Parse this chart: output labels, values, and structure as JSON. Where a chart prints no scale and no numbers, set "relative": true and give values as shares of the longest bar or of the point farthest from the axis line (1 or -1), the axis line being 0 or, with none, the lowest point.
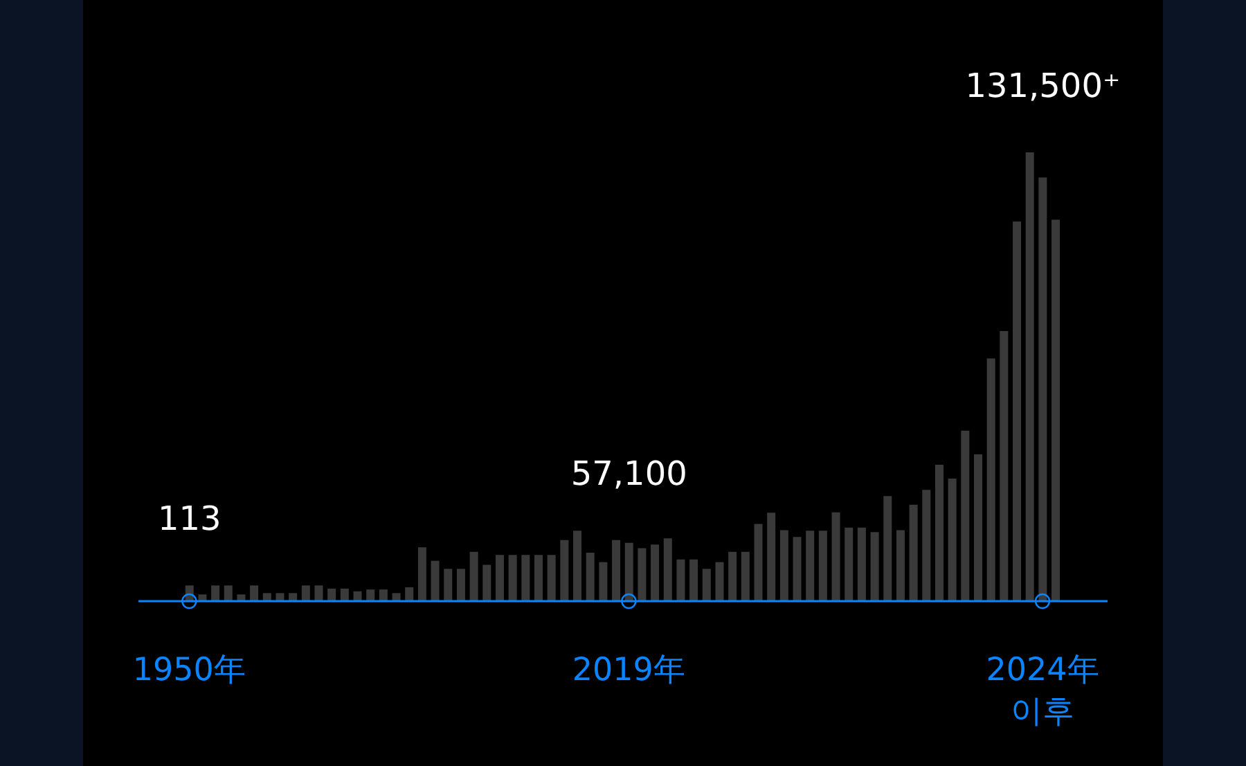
{
  "chart_data": {
    "type": "bar",
    "relative": true,
    "color": "#3a3a3a",
    "tick_labels": "x",
    "annotations": [
      "113",
      "57,100",
      "131,500⁺"
    ],
    "categories": [
      "1950年",
      null,
      null,
      null,
      null,
      null,
      null,
      null,
      null,
      null,
      null,
      null,
      null,
      null,
      null,
      null,
      null,
      null,
      null,
      null,
      null,
      null,
      null,
      null,
      null,
      null,
      null,
      null,
      null,
      null,
      null,
      null,
      null,
      null,
      "2019年",
      null,
      null,
      null,
      null,
      null,
      null,
      null,
      null,
      null,
      null,
      null,
      null,
      null,
      null,
      null,
      null,
      null,
      null,
      null,
      null,
      null,
      null,
      null,
      null,
      null,
      null,
      null,
      null,
      null,
      null,
      null,
      "2024年\n이후",
      null
    ],
    "values": [
      0.035,
      0.015,
      0.035,
      0.035,
      0.015,
      0.035,
      0.018,
      0.018,
      0.018,
      0.035,
      0.035,
      0.028,
      0.028,
      0.022,
      0.026,
      0.026,
      0.018,
      0.031,
      0.12,
      0.09,
      0.072,
      0.072,
      0.11,
      0.081,
      0.103,
      0.103,
      0.103,
      0.103,
      0.103,
      0.136,
      0.157,
      0.108,
      0.087,
      0.136,
      0.13,
      0.118,
      0.126,
      0.14,
      0.093,
      0.093,
      0.072,
      0.087,
      0.11,
      0.11,
      0.172,
      0.197,
      0.158,
      0.143,
      0.157,
      0.157,
      0.198,
      0.164,
      0.164,
      0.154,
      0.234,
      0.158,
      0.215,
      0.248,
      0.304,
      0.273,
      0.38,
      0.327,
      0.541,
      0.602,
      0.846,
      1,
      0.944,
      0.85
    ]
  }
}
